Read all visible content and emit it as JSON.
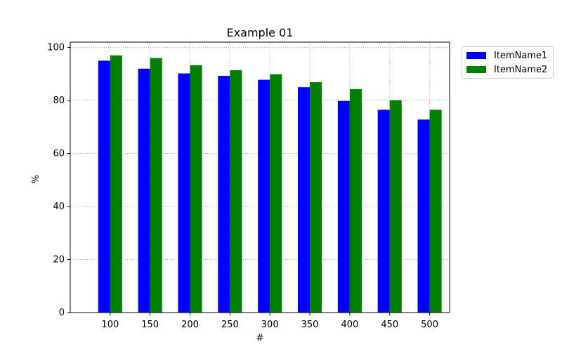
{
  "chart_data": {
    "type": "bar",
    "title": "Example 01",
    "xlabel": "#",
    "ylabel": "%",
    "categories": [
      "100",
      "150",
      "200",
      "250",
      "300",
      "350",
      "400",
      "450",
      "500"
    ],
    "series": [
      {
        "name": "ItemName1",
        "color": "#0000ff",
        "values": [
          95.0,
          92.0,
          90.2,
          89.3,
          87.8,
          85.0,
          79.8,
          76.5,
          72.8
        ]
      },
      {
        "name": "ItemName2",
        "color": "#008000",
        "values": [
          97.0,
          96.0,
          93.3,
          91.4,
          89.9,
          86.9,
          84.3,
          80.1,
          76.5
        ]
      }
    ],
    "ylim": [
      0,
      100
    ],
    "yticks": [
      "0",
      "20",
      "40",
      "60",
      "80",
      "100"
    ],
    "grid": true,
    "grid_style": "dotted",
    "legend_position": "upper-right-outside"
  }
}
